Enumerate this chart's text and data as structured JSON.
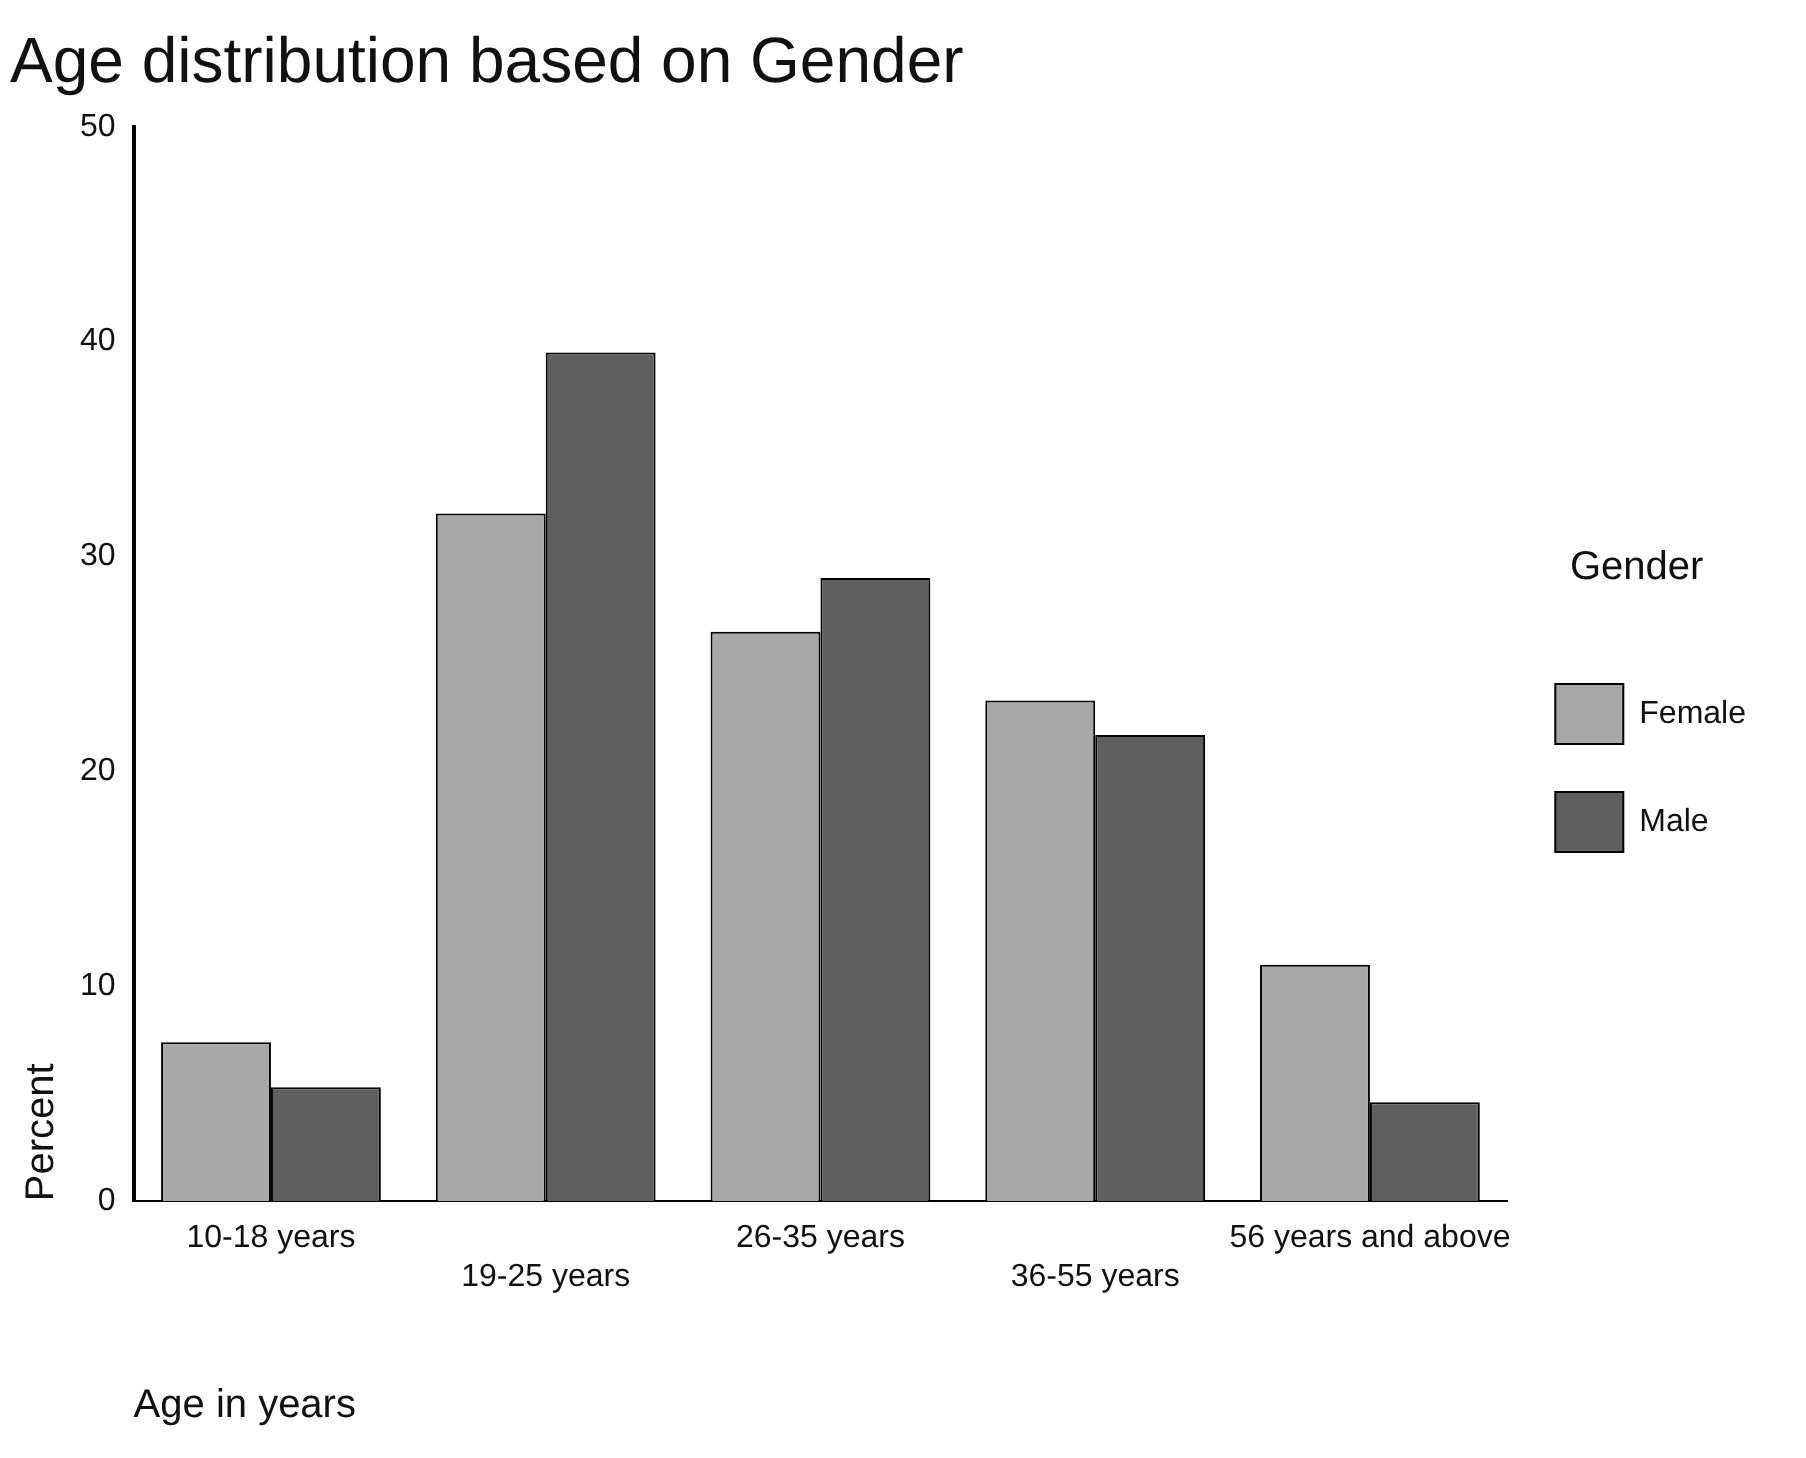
{
  "chart_data": {
    "type": "bar",
    "title": "Age distribution based on Gender",
    "xlabel": "Age in years",
    "ylabel": "Percent",
    "legend_title": "Gender",
    "categories": [
      "10-18 years",
      "19-25 years",
      "26-35 years",
      "36-55 years",
      "56 years and above"
    ],
    "series": [
      {
        "name": "Female",
        "color": "#a8a8a8",
        "values": [
          7.4,
          32.0,
          26.5,
          23.3,
          11.0
        ]
      },
      {
        "name": "Male",
        "color": "#5f5f5f",
        "values": [
          5.3,
          39.5,
          29.0,
          21.7,
          4.6
        ]
      }
    ],
    "ylim": [
      0,
      50
    ],
    "yticks": [
      0,
      10,
      20,
      30,
      40,
      50
    ],
    "grid": false,
    "legend": "right"
  }
}
